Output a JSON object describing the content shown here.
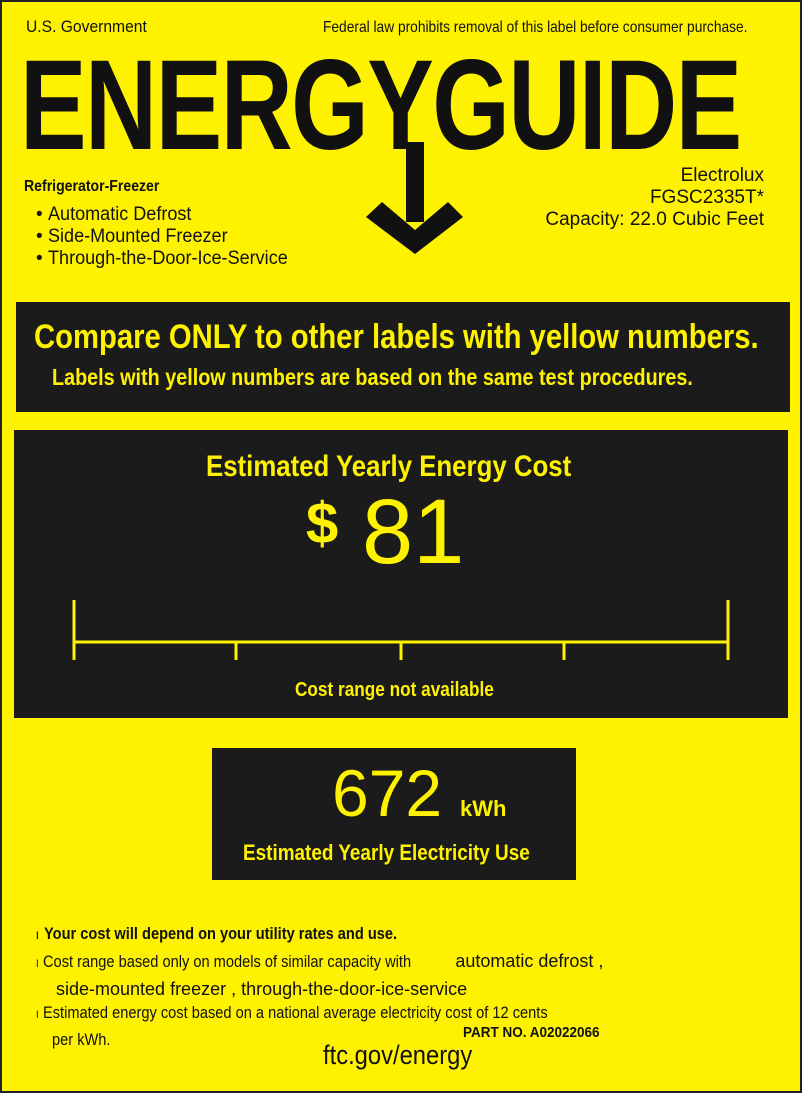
{
  "header": {
    "government": "U.S. Government",
    "notice": "Federal law prohibits removal of this label before consumer purchase.",
    "logo_text": "ENERGYGUIDE"
  },
  "product": {
    "type": "Refrigerator-Freezer",
    "features": [
      "Automatic Defrost",
      "Side-Mounted Freezer",
      "Through-the-Door-Ice-Service"
    ],
    "brand": "Electrolux",
    "model": "FGSC2335T*",
    "capacity": "Capacity: 22.0 Cubic Feet"
  },
  "compare": {
    "headline": "Compare ONLY to other labels with yellow numbers.",
    "subline": "Labels with yellow numbers are based on the same test procedures."
  },
  "cost": {
    "title": "Estimated Yearly Energy Cost",
    "currency": "$",
    "amount": "81",
    "range_note": "Cost range not available"
  },
  "electricity": {
    "value": "672",
    "unit": "kWh",
    "label": "Estimated Yearly Electricity Use"
  },
  "footer": {
    "note1": "Your cost will depend on your utility rates and use.",
    "note2_a": "Cost range based only on models of similar capacity with",
    "note2_b": "automatic defrost ,",
    "note2_c": "side-mounted freezer , through-the-door-ice-service",
    "note3_a": "Estimated energy cost based on a national average electricity cost of 12 cents",
    "note3_b": "per kWh.",
    "part_no": "PART NO. A02022066",
    "url": "ftc.gov/energy"
  },
  "colors": {
    "label_yellow": "#fff200",
    "panel_black": "#1b1b1b"
  }
}
